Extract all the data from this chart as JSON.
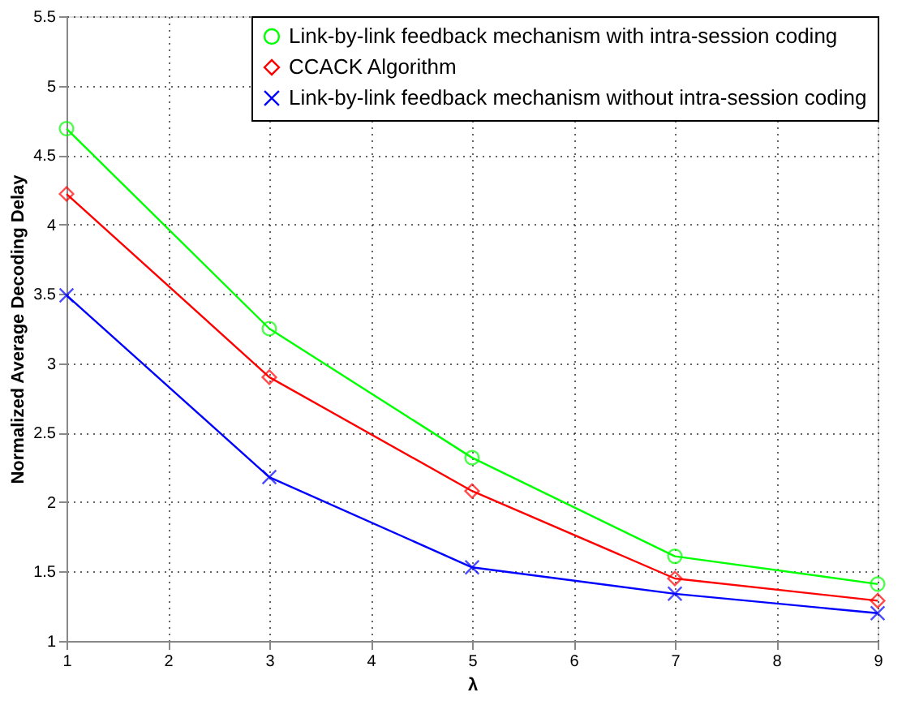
{
  "chart_data": {
    "type": "line",
    "xlabel": "λ",
    "ylabel": "Normalized Average Decoding Delay",
    "x": [
      1,
      3,
      5,
      7,
      9
    ],
    "series": [
      {
        "name": "Link-by-link feedback mechanism with intra-session coding",
        "color": "#00ff00",
        "marker": "circle",
        "values": [
          4.69,
          3.25,
          2.32,
          1.61,
          1.41
        ]
      },
      {
        "name": "CCACK Algorithm",
        "color": "#ff0000",
        "marker": "diamond",
        "values": [
          4.22,
          2.9,
          2.08,
          1.45,
          1.29
        ]
      },
      {
        "name": "Link-by-link feedback mechanism without intra-session coding",
        "color": "#0000ff",
        "marker": "cross",
        "values": [
          3.49,
          2.18,
          1.53,
          1.34,
          1.2
        ]
      }
    ],
    "xlim": [
      1,
      9
    ],
    "xticks": [
      1,
      2,
      3,
      4,
      5,
      6,
      7,
      8,
      9
    ],
    "ylim": [
      1,
      5.5
    ],
    "yticks": [
      1,
      1.5,
      2,
      2.5,
      3,
      3.5,
      4,
      4.5,
      5,
      5.5
    ],
    "grid": true,
    "legend": "top right",
    "line_style": "solid"
  }
}
